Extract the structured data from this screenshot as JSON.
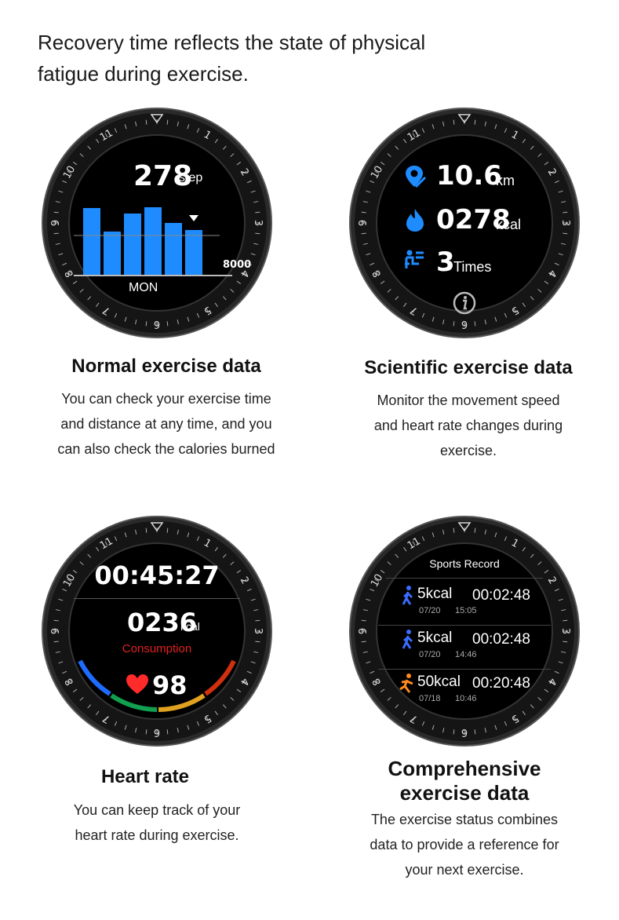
{
  "intro": {
    "line1": "Recovery time reflects the state of physical",
    "line2": "fatigue during exercise."
  },
  "bezel": {
    "numbers": [
      "1",
      "2",
      "3",
      "4",
      "5",
      "6",
      "7",
      "8",
      "9",
      "10",
      "11"
    ]
  },
  "watch1": {
    "steps": "278",
    "steps_unit": "step",
    "target": "8000",
    "day": "MON",
    "bars": [
      0.85,
      0.55,
      0.78,
      0.86,
      0.66,
      0.57
    ],
    "bar_color": "#1e8cff"
  },
  "watch2": {
    "distance": "10.6",
    "distance_unit": "km",
    "calories": "0278",
    "calories_unit": "kcal",
    "times": "3",
    "times_unit": "Times",
    "info_icon": "info-icon",
    "accent": "#1e8cff"
  },
  "watch3": {
    "duration": "00:45:27",
    "calories": "0236",
    "calories_unit": "kcal",
    "consumption": "Consumption",
    "heart_rate": "98",
    "consumption_color": "#e02020"
  },
  "watch4": {
    "title": "Sports Record",
    "records": [
      {
        "icon": "walking-icon",
        "kcal": "5kcal",
        "duration": "00:02:48",
        "date": "07/20",
        "time": "15:05",
        "color": "#3a6cff"
      },
      {
        "icon": "walking-icon",
        "kcal": "5kcal",
        "duration": "00:02:48",
        "date": "07/20",
        "time": "14:46",
        "color": "#3a6cff"
      },
      {
        "icon": "running-icon",
        "kcal": "50kcal",
        "duration": "00:20:48",
        "date": "07/18",
        "time": "10:46",
        "color": "#ff8a1e"
      }
    ]
  },
  "sections": {
    "normal": {
      "title": "Normal exercise data",
      "lines": [
        "You can check your exercise time",
        "and distance at any time, and you",
        "can also check the calories burned"
      ]
    },
    "scientific": {
      "title": "Scientific exercise data",
      "lines": [
        "Monitor the movement speed",
        "and heart rate changes during",
        "exercise."
      ]
    },
    "heart": {
      "title": "Heart rate",
      "lines": [
        "You can keep track of your",
        "heart rate during exercise."
      ]
    },
    "comprehensive": {
      "title_line1": "Comprehensive",
      "title_line2": "exercise data",
      "lines": [
        "The exercise status combines",
        "data to provide a reference for",
        "your next exercise."
      ]
    }
  }
}
